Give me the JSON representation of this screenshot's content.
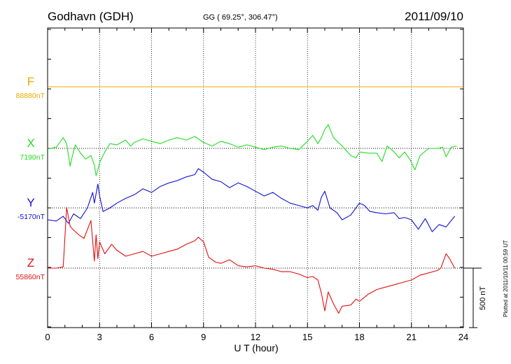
{
  "header": {
    "station": "Godhavn (GDH)",
    "coords": "GG ( 69.25°, 306.47°)",
    "date": "2011/09/10"
  },
  "side_note": "Plotted at 2011/10/11 00:59 UT",
  "scale_label": "500 nT",
  "colors": {
    "F": "#f0a800",
    "X": "#22dd22",
    "Y": "#1010d0",
    "Z": "#e01010",
    "grid": "#000000"
  },
  "chart_data": {
    "type": "line",
    "title": "Godhavn (GDH)",
    "xlabel": "U T (hour)",
    "xlim": [
      0,
      24
    ],
    "xticks": [
      0,
      3,
      6,
      9,
      12,
      15,
      18,
      21,
      24
    ],
    "x_tick_labels": [
      "0",
      "3",
      "6",
      "9",
      "12",
      "15",
      "18",
      "21",
      "24"
    ],
    "grid": true,
    "scale_bar_nT": 500,
    "series": [
      {
        "name": "F",
        "baseline_label": "88880nT",
        "color": "#f0a800",
        "x": [
          0,
          24
        ],
        "y": [
          0,
          0
        ]
      },
      {
        "name": "X",
        "baseline_label": "7190nT",
        "color": "#22dd22",
        "x": [
          0,
          0.5,
          0.9,
          1.1,
          1.3,
          1.4,
          1.6,
          1.9,
          2.2,
          2.5,
          2.7,
          2.8,
          2.9,
          3.0,
          3.3,
          3.6,
          4.0,
          4.5,
          4.8,
          5.0,
          5.5,
          6.0,
          6.5,
          7.0,
          7.5,
          8.0,
          8.5,
          9.0,
          9.5,
          10.0,
          10.5,
          11.0,
          11.5,
          12.0,
          12.5,
          13.0,
          13.5,
          14.0,
          14.5,
          15.0,
          15.3,
          15.6,
          15.8,
          16.0,
          16.2,
          16.5,
          17.0,
          17.5,
          17.8,
          18.0,
          18.5,
          19.0,
          19.3,
          19.6,
          20.0,
          20.3,
          20.6,
          20.9,
          21.2,
          21.5,
          22.0,
          22.5,
          22.8,
          23.0,
          23.3,
          23.6
        ],
        "y": [
          -5,
          10,
          90,
          40,
          -150,
          -80,
          30,
          -40,
          -90,
          -60,
          -140,
          -230,
          -180,
          -120,
          -30,
          40,
          30,
          70,
          20,
          50,
          80,
          60,
          40,
          70,
          90,
          70,
          100,
          50,
          20,
          60,
          40,
          10,
          30,
          10,
          -10,
          10,
          20,
          0,
          -10,
          60,
          110,
          40,
          90,
          160,
          200,
          90,
          20,
          -60,
          -80,
          -30,
          -40,
          -40,
          -110,
          20,
          -30,
          -80,
          -30,
          -90,
          -180,
          -60,
          0,
          0,
          10,
          -70,
          10,
          20
        ]
      },
      {
        "name": "Y",
        "baseline_label": "-5170nT",
        "color": "#1010d0",
        "x": [
          0,
          0.5,
          0.9,
          1.2,
          1.5,
          1.9,
          2.3,
          2.6,
          2.7,
          2.8,
          2.9,
          3.0,
          3.2,
          3.6,
          4.0,
          4.5,
          5.0,
          5.5,
          6.0,
          6.5,
          7.0,
          7.5,
          8.0,
          8.5,
          8.7,
          9.0,
          9.5,
          10.0,
          10.5,
          11.0,
          11.5,
          12.0,
          12.5,
          13.0,
          13.5,
          14.0,
          14.5,
          15.0,
          15.3,
          15.6,
          15.8,
          16.0,
          16.3,
          16.7,
          17.0,
          17.5,
          18.0,
          18.3,
          18.6,
          19.0,
          19.5,
          20.0,
          20.3,
          20.6,
          21.0,
          21.4,
          21.8,
          22.2,
          22.6,
          23.0,
          23.5
        ],
        "y": [
          -100,
          -110,
          -70,
          -130,
          -50,
          -90,
          0,
          130,
          40,
          120,
          200,
          100,
          -30,
          0,
          40,
          80,
          110,
          160,
          130,
          180,
          210,
          230,
          260,
          280,
          330,
          300,
          240,
          220,
          170,
          210,
          180,
          140,
          100,
          130,
          80,
          40,
          20,
          0,
          20,
          -20,
          90,
          140,
          0,
          -40,
          -100,
          -60,
          40,
          20,
          -30,
          -40,
          -50,
          -40,
          -90,
          -80,
          -100,
          -180,
          -90,
          -200,
          -140,
          -160,
          -70
        ]
      },
      {
        "name": "Z",
        "baseline_label": "55860nT",
        "color": "#e01010",
        "x": [
          0,
          0.5,
          0.9,
          1.1,
          1.3,
          1.5,
          1.8,
          2.1,
          2.5,
          2.7,
          2.8,
          2.9,
          3.0,
          3.3,
          3.7,
          4.0,
          4.5,
          5.0,
          5.5,
          6.0,
          6.5,
          7.0,
          7.5,
          8.0,
          8.5,
          8.7,
          9.0,
          9.3,
          9.7,
          10.0,
          10.5,
          11.0,
          11.5,
          12.0,
          12.5,
          13.0,
          13.5,
          14.0,
          14.5,
          15.0,
          15.3,
          15.6,
          15.8,
          16.0,
          16.2,
          16.5,
          16.8,
          17.0,
          17.5,
          17.8,
          18.0,
          18.5,
          19.0,
          19.5,
          20.0,
          20.5,
          21.0,
          21.5,
          22.0,
          22.5,
          22.7,
          23.0,
          23.2,
          23.5
        ],
        "y": [
          0,
          0,
          10,
          510,
          350,
          320,
          280,
          250,
          400,
          60,
          280,
          80,
          220,
          120,
          200,
          150,
          100,
          120,
          140,
          100,
          120,
          140,
          160,
          200,
          230,
          260,
          220,
          90,
          50,
          40,
          70,
          20,
          10,
          20,
          0,
          -10,
          -30,
          -30,
          -50,
          -80,
          -70,
          -100,
          -210,
          -360,
          -200,
          -300,
          -380,
          -320,
          -310,
          -260,
          -280,
          -220,
          -180,
          -160,
          -140,
          -120,
          -100,
          -60,
          -40,
          -20,
          0,
          120,
          80,
          0
        ]
      }
    ]
  }
}
